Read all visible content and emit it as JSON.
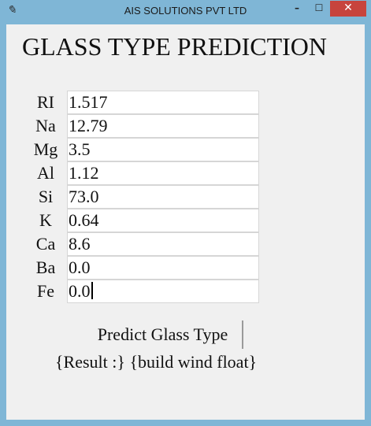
{
  "window": {
    "title": "AIS SOLUTIONS PVT LTD",
    "app_icon": "feather-icon",
    "controls": {
      "minimize": "–",
      "maximize": "☐",
      "close": "✕"
    },
    "colors": {
      "frame": "#7fb6d6",
      "close_button": "#c7443d",
      "client": "#f0f0f0"
    }
  },
  "heading": "GLASS TYPE PREDICTION",
  "fields": [
    {
      "label": "RI",
      "value": "1.517"
    },
    {
      "label": "Na",
      "value": "12.79"
    },
    {
      "label": "Mg",
      "value": "3.5"
    },
    {
      "label": "Al",
      "value": "1.12"
    },
    {
      "label": "Si",
      "value": "73.0"
    },
    {
      "label": "K",
      "value": "0.64"
    },
    {
      "label": "Ca",
      "value": "8.6"
    },
    {
      "label": "Ba",
      "value": "0.0"
    },
    {
      "label": "Fe",
      "value": "0.0"
    }
  ],
  "predict_button_label": "Predict Glass Type",
  "result_text": "{Result :}  {build wind float}"
}
